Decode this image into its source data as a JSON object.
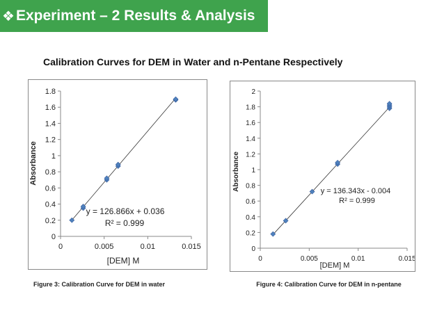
{
  "header": {
    "icon": "diamond-bullet-icon",
    "title": "Experiment – 2 Results & Analysis",
    "bg_color": "#3fa34d"
  },
  "subtitle": "Calibration Curves for DEM in Water and n-Pentane Respectively",
  "captions": {
    "fig3": "Figure 3: Calibration Curve for DEM in water",
    "fig4": "Figure 4: Calibration Curve for DEM in n-pentane"
  },
  "chart_data": [
    {
      "type": "scatter",
      "title": "",
      "xlabel": "[DEM] M",
      "ylabel": "Absorbance",
      "xlim": [
        0,
        0.015
      ],
      "ylim": [
        0,
        1.8
      ],
      "x_ticks": [
        0,
        0.005,
        0.01,
        0.015
      ],
      "x_tick_labels": [
        "0",
        "0.005",
        "0.01",
        "0.015"
      ],
      "y_ticks": [
        0,
        0.2,
        0.4,
        0.6,
        0.8,
        1,
        1.2,
        1.4,
        1.6,
        1.8
      ],
      "y_tick_labels": [
        "0",
        "0.2",
        "0.4",
        "0.6",
        "0.8",
        "1",
        "1.2",
        "1.4",
        "1.6",
        "1.8"
      ],
      "points": [
        {
          "x": 0.0013,
          "y": 0.2
        },
        {
          "x": 0.0026,
          "y": 0.35
        },
        {
          "x": 0.0026,
          "y": 0.37
        },
        {
          "x": 0.0053,
          "y": 0.7
        },
        {
          "x": 0.0053,
          "y": 0.72
        },
        {
          "x": 0.0066,
          "y": 0.87
        },
        {
          "x": 0.0066,
          "y": 0.89
        },
        {
          "x": 0.0132,
          "y": 1.69
        },
        {
          "x": 0.0132,
          "y": 1.7
        }
      ],
      "trendline": {
        "slope": 126.866,
        "intercept": 0.036,
        "x_range": [
          0.0013,
          0.0132
        ]
      },
      "equation": "y = 126.866x + 0.036",
      "r_squared": "R² = 0.999",
      "grid": false
    },
    {
      "type": "scatter",
      "title": "",
      "xlabel": "[DEM] M",
      "ylabel": "Absorbance",
      "xlim": [
        0,
        0.015
      ],
      "ylim": [
        0,
        2
      ],
      "x_ticks": [
        0,
        0.005,
        0.01,
        0.015
      ],
      "x_tick_labels": [
        "0",
        "0.005",
        "0.01",
        "0.015"
      ],
      "y_ticks": [
        0,
        0.2,
        0.4,
        0.6,
        0.8,
        1,
        1.2,
        1.4,
        1.6,
        1.8,
        2
      ],
      "y_tick_labels": [
        "0",
        "0.2",
        "0.4",
        "0.6",
        "0.8",
        "1",
        "1.2",
        "1.4",
        "1.6",
        "1.8",
        "2"
      ],
      "points": [
        {
          "x": 0.0013,
          "y": 0.18
        },
        {
          "x": 0.0026,
          "y": 0.35
        },
        {
          "x": 0.0053,
          "y": 0.72
        },
        {
          "x": 0.0079,
          "y": 1.07
        },
        {
          "x": 0.0079,
          "y": 1.09
        },
        {
          "x": 0.0132,
          "y": 1.78
        },
        {
          "x": 0.0132,
          "y": 1.8
        },
        {
          "x": 0.0132,
          "y": 1.82
        },
        {
          "x": 0.0132,
          "y": 1.84
        }
      ],
      "trendline": {
        "slope": 136.343,
        "intercept": -0.004,
        "x_range": [
          0.0013,
          0.0132
        ]
      },
      "equation": "y = 136.343x - 0.004",
      "r_squared": "R² = 0.999",
      "grid": false
    }
  ]
}
